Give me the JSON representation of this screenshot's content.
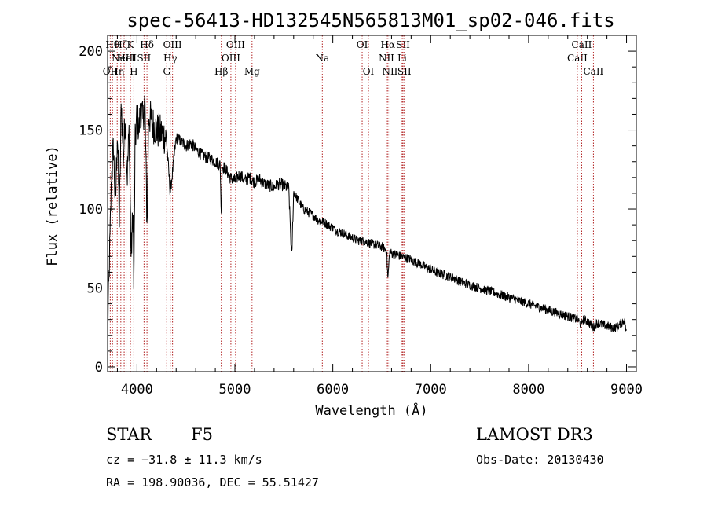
{
  "chart_data": {
    "type": "line",
    "title": "spec-56413-HD132545N565813M01_sp02-046.fits",
    "xlabel": "Wavelength (Å)",
    "ylabel": "Flux (relative)",
    "xlim": [
      3700,
      9100
    ],
    "ylim": [
      -3,
      210
    ],
    "xticks": [
      4000,
      5000,
      6000,
      7000,
      8000,
      9000
    ],
    "yticks": [
      0,
      50,
      100,
      150,
      200
    ],
    "series": [
      {
        "name": "flux",
        "x": [
          3700,
          3720,
          3740,
          3760,
          3780,
          3800,
          3820,
          3840,
          3860,
          3880,
          3900,
          3920,
          3940,
          3960,
          3968,
          3980,
          4000,
          4020,
          4040,
          4060,
          4080,
          4102,
          4120,
          4150,
          4200,
          4250,
          4300,
          4340,
          4400,
          4450,
          4500,
          4550,
          4600,
          4650,
          4700,
          4750,
          4800,
          4850,
          4861,
          4870,
          4900,
          4950,
          5000,
          5050,
          5100,
          5150,
          5200,
          5250,
          5300,
          5350,
          5400,
          5450,
          5500,
          5550,
          5580,
          5600,
          5650,
          5700,
          5750,
          5800,
          5850,
          5900,
          5950,
          6000,
          6050,
          6100,
          6150,
          6200,
          6250,
          6300,
          6350,
          6400,
          6450,
          6500,
          6550,
          6563,
          6580,
          6600,
          6650,
          6700,
          6750,
          6800,
          6850,
          6900,
          6950,
          7000,
          7050,
          7100,
          7150,
          7200,
          7250,
          7300,
          7350,
          7400,
          7450,
          7500,
          7550,
          7600,
          7650,
          7700,
          7750,
          7800,
          7850,
          7900,
          7950,
          8000,
          8050,
          8100,
          8150,
          8200,
          8250,
          8300,
          8350,
          8400,
          8450,
          8500,
          8542,
          8550,
          8600,
          8662,
          8700,
          8750,
          8800,
          8850,
          8900,
          8950,
          8980,
          9000
        ],
        "values": [
          20,
          70,
          120,
          140,
          100,
          150,
          90,
          170,
          130,
          160,
          120,
          150,
          70,
          100,
          45,
          140,
          160,
          150,
          165,
          155,
          170,
          90,
          160,
          155,
          150,
          148,
          145,
          110,
          145,
          143,
          140,
          142,
          138,
          135,
          133,
          132,
          130,
          128,
          95,
          127,
          126,
          120,
          118,
          122,
          118,
          120,
          117,
          119,
          116,
          115,
          114,
          116,
          115,
          113,
          68,
          111,
          105,
          100,
          98,
          96,
          93,
          92,
          90,
          88,
          86,
          85,
          83,
          82,
          80,
          80,
          79,
          78,
          77,
          76,
          74,
          55,
          73,
          72,
          71,
          70,
          69,
          68,
          66,
          65,
          63,
          62,
          60,
          59,
          58,
          57,
          56,
          54,
          53,
          52,
          51,
          50,
          49,
          48,
          47,
          46,
          45,
          44,
          43,
          42,
          41,
          40,
          39,
          38,
          37,
          36,
          35,
          34,
          33,
          32,
          31,
          30,
          26,
          30,
          29,
          25,
          28,
          27,
          26,
          25,
          25,
          28,
          30,
          20
        ]
      }
    ],
    "lines": [
      {
        "wl": 3727,
        "label": "OII",
        "row": 3
      },
      {
        "wl": 3750,
        "label": "Hθ",
        "row": 1
      },
      {
        "wl": 3798,
        "label": "Hη",
        "row": 3
      },
      {
        "wl": 3835,
        "label": "Hζ",
        "row": 1
      },
      {
        "wl": 3869,
        "label": "NeIII",
        "row": 2
      },
      {
        "wl": 3889,
        "label": "HeI",
        "row": 2
      },
      {
        "wl": 3933,
        "label": "K",
        "row": 1
      },
      {
        "wl": 3968,
        "label": "H",
        "row": 3
      },
      {
        "wl": 4072,
        "label": "SII",
        "row": 2
      },
      {
        "wl": 4102,
        "label": "Hδ",
        "row": 1
      },
      {
        "wl": 4304,
        "label": "G",
        "row": 3
      },
      {
        "wl": 4340,
        "label": "Hγ",
        "row": 2
      },
      {
        "wl": 4363,
        "label": "OIII",
        "row": 1
      },
      {
        "wl": 4861,
        "label": "Hβ",
        "row": 3
      },
      {
        "wl": 4959,
        "label": "OIII",
        "row": 2
      },
      {
        "wl": 5007,
        "label": "OIII",
        "row": 1
      },
      {
        "wl": 5175,
        "label": "Mg",
        "row": 3
      },
      {
        "wl": 5893,
        "label": "Na",
        "row": 2
      },
      {
        "wl": 6300,
        "label": "OI",
        "row": 1
      },
      {
        "wl": 6364,
        "label": "OI",
        "row": 3
      },
      {
        "wl": 6548,
        "label": "NII",
        "row": 2
      },
      {
        "wl": 6563,
        "label": "Hα",
        "row": 1
      },
      {
        "wl": 6584,
        "label": "NII",
        "row": 3
      },
      {
        "wl": 6708,
        "label": "Li",
        "row": 2
      },
      {
        "wl": 6717,
        "label": "SII",
        "row": 1
      },
      {
        "wl": 6731,
        "label": "SII",
        "row": 3
      },
      {
        "wl": 8498,
        "label": "CaII",
        "row": 2
      },
      {
        "wl": 8542,
        "label": "CaII",
        "row": 1
      },
      {
        "wl": 8662,
        "label": "CaII",
        "row": 3
      }
    ]
  },
  "info": {
    "object_class": "STAR",
    "subclass": "F5",
    "survey": "LAMOST DR3",
    "redshift": "cz = −31.8 ± 11.3 km/s",
    "obs_date": "Obs-Date: 20130430",
    "coords": "RA = 198.90036, DEC =  55.51427"
  }
}
